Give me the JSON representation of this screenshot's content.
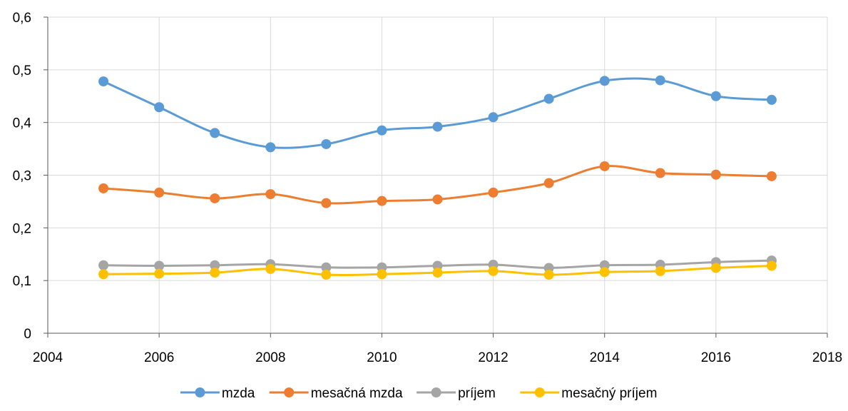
{
  "chart_data": {
    "type": "line",
    "title": "",
    "xlabel": "",
    "ylabel": "",
    "xlim": [
      2004,
      2018
    ],
    "ylim": [
      0,
      0.6
    ],
    "x_ticks": [
      2004,
      2006,
      2008,
      2010,
      2012,
      2014,
      2016,
      2018
    ],
    "y_ticks": [
      0,
      0.1,
      0.2,
      0.3,
      0.4,
      0.5,
      0.6
    ],
    "x_tick_labels": [
      "2004",
      "2006",
      "2008",
      "2010",
      "2012",
      "2014",
      "2016",
      "2018"
    ],
    "y_tick_labels": [
      "0",
      "0,1",
      "0,2",
      "0,3",
      "0,4",
      "0,5",
      "0,6"
    ],
    "grid": true,
    "legend_position": "bottom",
    "smooth": true,
    "x": [
      2005,
      2006,
      2007,
      2008,
      2009,
      2010,
      2011,
      2012,
      2013,
      2014,
      2015,
      2016,
      2017
    ],
    "series": [
      {
        "name": "mzda",
        "color": "#5B9BD5",
        "values": [
          0.478,
          0.429,
          0.38,
          0.353,
          0.359,
          0.385,
          0.392,
          0.41,
          0.445,
          0.479,
          0.48,
          0.45,
          0.443
        ]
      },
      {
        "name": "mesačná mzda",
        "color": "#ED7D31",
        "values": [
          0.275,
          0.267,
          0.256,
          0.264,
          0.247,
          0.251,
          0.254,
          0.267,
          0.285,
          0.317,
          0.304,
          0.301,
          0.298
        ]
      },
      {
        "name": "príjem",
        "color": "#A5A5A5",
        "values": [
          0.129,
          0.128,
          0.129,
          0.131,
          0.125,
          0.125,
          0.128,
          0.13,
          0.124,
          0.129,
          0.13,
          0.135,
          0.138
        ]
      },
      {
        "name": "mesačný príjem",
        "color": "#FFC000",
        "values": [
          0.112,
          0.113,
          0.115,
          0.122,
          0.111,
          0.112,
          0.115,
          0.118,
          0.111,
          0.116,
          0.118,
          0.124,
          0.128
        ]
      }
    ],
    "gridline_color": "#D9D9D9",
    "axis_color": "#595959"
  }
}
